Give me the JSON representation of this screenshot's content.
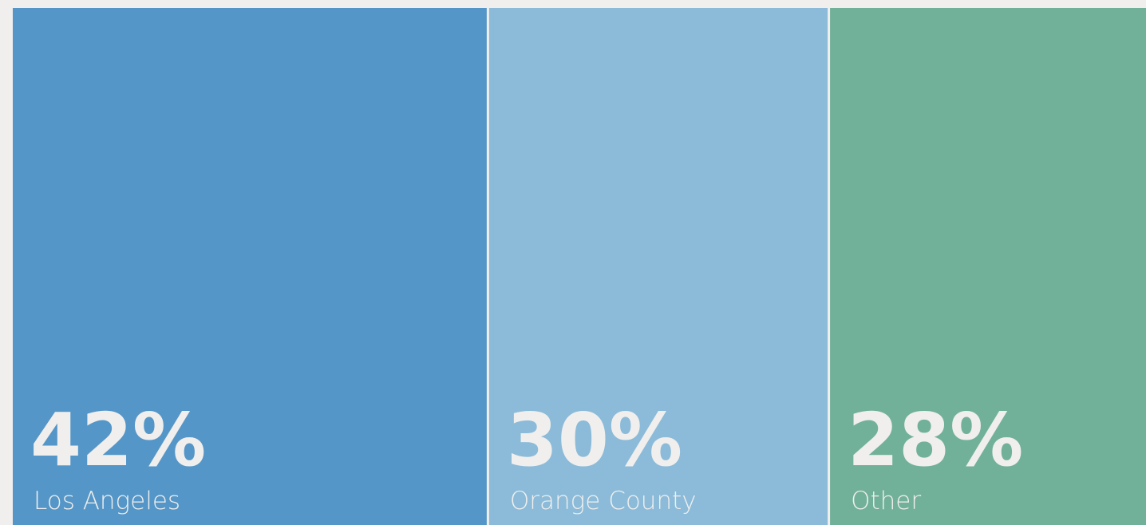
{
  "chart_data": {
    "type": "treemap",
    "categories": [
      "Los Angeles",
      "Orange County",
      "Other"
    ],
    "values": [
      42,
      30,
      28
    ],
    "value_labels": [
      "42%",
      "30%",
      "28%"
    ],
    "colors": [
      "#5596c8",
      "#8bbbd9",
      "#72b199"
    ]
  }
}
